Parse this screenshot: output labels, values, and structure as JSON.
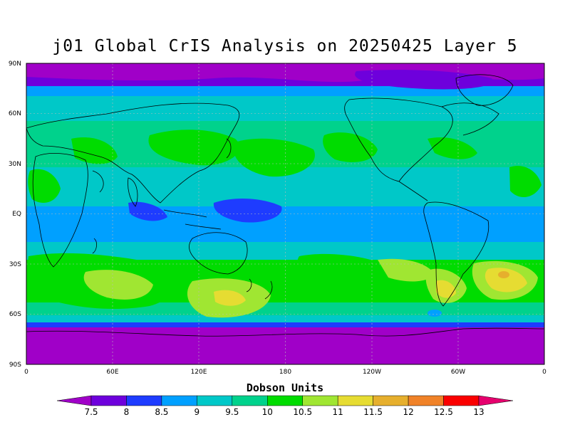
{
  "title": "j01 Global CrIS Analysis on 20250425 Layer 5",
  "map": {
    "lat_ticks": [
      "90N",
      "60N",
      "30N",
      "EQ",
      "30S",
      "60S",
      "90S"
    ],
    "lon_ticks": [
      "0",
      "60E",
      "120E",
      "180",
      "120W",
      "60W",
      "0"
    ],
    "projection": "cylindrical-equidistant",
    "gridlines": true
  },
  "colorbar": {
    "title": "Dobson Units",
    "levels": [
      "7.5",
      "8",
      "8.5",
      "9",
      "9.5",
      "10",
      "10.5",
      "11",
      "11.5",
      "12",
      "12.5",
      "13"
    ],
    "colors": [
      "#a000c8",
      "#6e00dc",
      "#1e3cff",
      "#00a0ff",
      "#00c8c8",
      "#00d28c",
      "#00dc00",
      "#a0e632",
      "#e6dc32",
      "#e6af2d",
      "#f08228",
      "#fa0000",
      "#e6006e"
    ]
  }
}
